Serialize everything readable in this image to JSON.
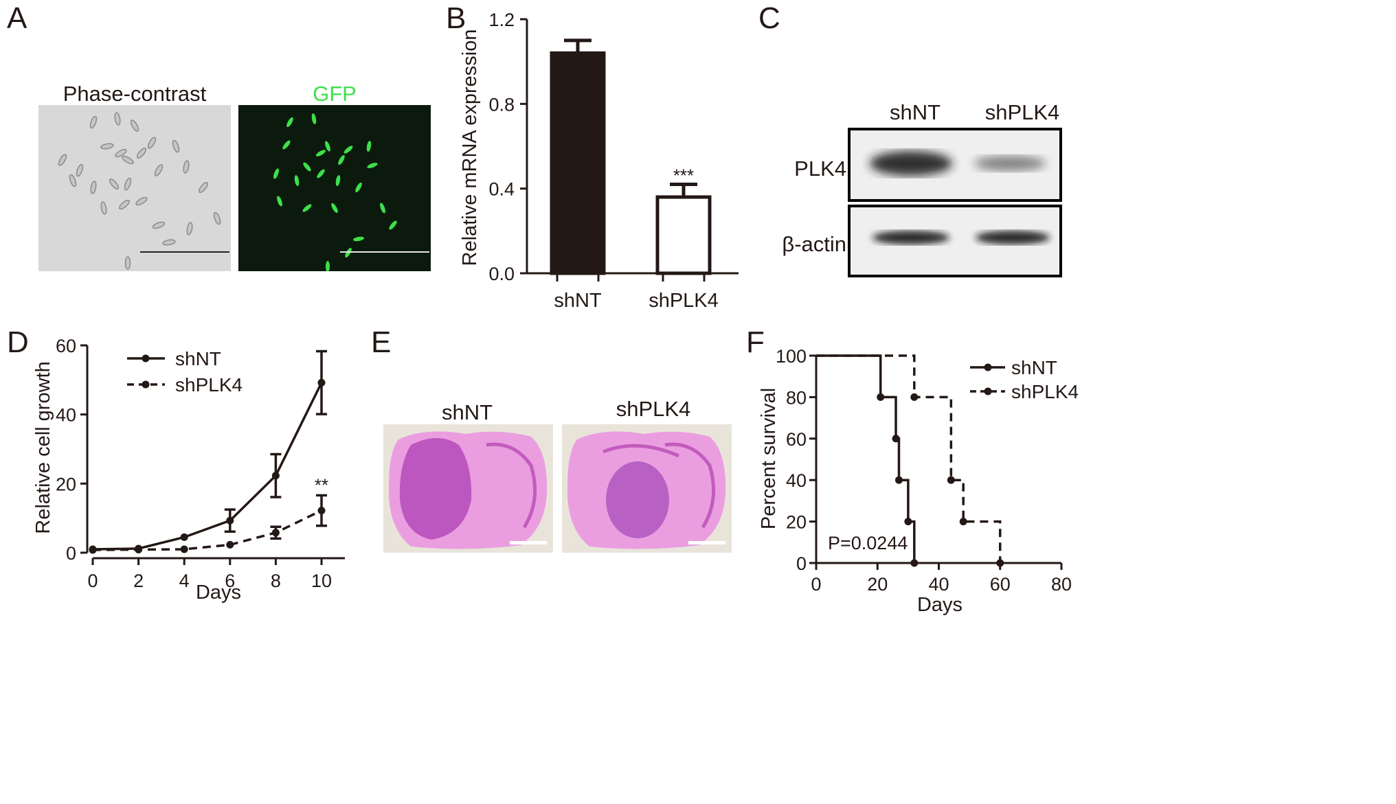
{
  "panels": {
    "a": "A",
    "b": "B",
    "c": "C",
    "d": "D",
    "e": "E",
    "f": "F"
  },
  "panel_a": {
    "left_title": "Phase-contrast",
    "right_title": "GFP",
    "gfp_color": "#3de04a"
  },
  "panel_c": {
    "col_labels": [
      "shNT",
      "shPLK4"
    ],
    "row_labels": [
      "PLK4",
      "β-actin"
    ]
  },
  "panel_e": {
    "labels": [
      "shNT",
      "shPLK4"
    ],
    "stain_color": "#d05ac4"
  },
  "chart_data": [
    {
      "panel": "B",
      "type": "bar",
      "categories": [
        "shNT",
        "shPLK4"
      ],
      "values": [
        1.04,
        0.36
      ],
      "errors": [
        0.06,
        0.06
      ],
      "fills": [
        "#231815",
        "#ffffff"
      ],
      "ylabel": "Relative mRNA expression",
      "ylim": [
        0,
        1.2
      ],
      "yticks": [
        "0.0",
        "0.4",
        "0.8",
        "1.2"
      ],
      "annotations": [
        {
          "category": "shPLK4",
          "text": "***"
        }
      ]
    },
    {
      "panel": "D",
      "type": "line",
      "x": [
        0,
        2,
        4,
        6,
        8,
        10
      ],
      "xlabel": "Days",
      "ylabel": "Relative cell growth",
      "xlim": [
        0,
        10
      ],
      "ylim": [
        0,
        60
      ],
      "xticks": [
        "0",
        "2",
        "4",
        "6",
        "8",
        "10"
      ],
      "yticks": [
        "0",
        "20",
        "40",
        "60"
      ],
      "series": [
        {
          "name": "shNT",
          "style": "solid",
          "values": [
            1,
            1.2,
            4.5,
            9.3,
            22.3,
            49.2
          ],
          "errors": [
            0.3,
            0.3,
            0.4,
            3.2,
            6.2,
            9.1
          ]
        },
        {
          "name": "shPLK4",
          "style": "dashed",
          "values": [
            0.8,
            0.9,
            1.0,
            2.3,
            5.8,
            12.2
          ],
          "errors": [
            0.2,
            0.2,
            0.3,
            0.4,
            1.7,
            4.4
          ]
        }
      ],
      "annotations": [
        {
          "x": 10,
          "text": "**"
        }
      ],
      "legend": "top-left"
    },
    {
      "panel": "F",
      "type": "line",
      "subtype": "kaplan-meier",
      "xlabel": "Days",
      "ylabel": "Percent survival",
      "xlim": [
        0,
        80
      ],
      "ylim": [
        0,
        100
      ],
      "xticks": [
        "0",
        "20",
        "40",
        "60",
        "80"
      ],
      "yticks": [
        "0",
        "20",
        "40",
        "60",
        "80",
        "100"
      ],
      "series": [
        {
          "name": "shNT",
          "style": "solid",
          "events": [
            [
              21,
              80
            ],
            [
              26,
              60
            ],
            [
              27,
              40
            ],
            [
              30,
              20
            ],
            [
              32,
              0
            ]
          ]
        },
        {
          "name": "shPLK4",
          "style": "dashed",
          "events": [
            [
              32,
              80
            ],
            [
              44,
              40
            ],
            [
              48,
              20
            ],
            [
              60,
              0
            ]
          ]
        }
      ],
      "annotations": [
        {
          "text": "P=0.0244"
        }
      ],
      "legend": "top-right"
    }
  ]
}
